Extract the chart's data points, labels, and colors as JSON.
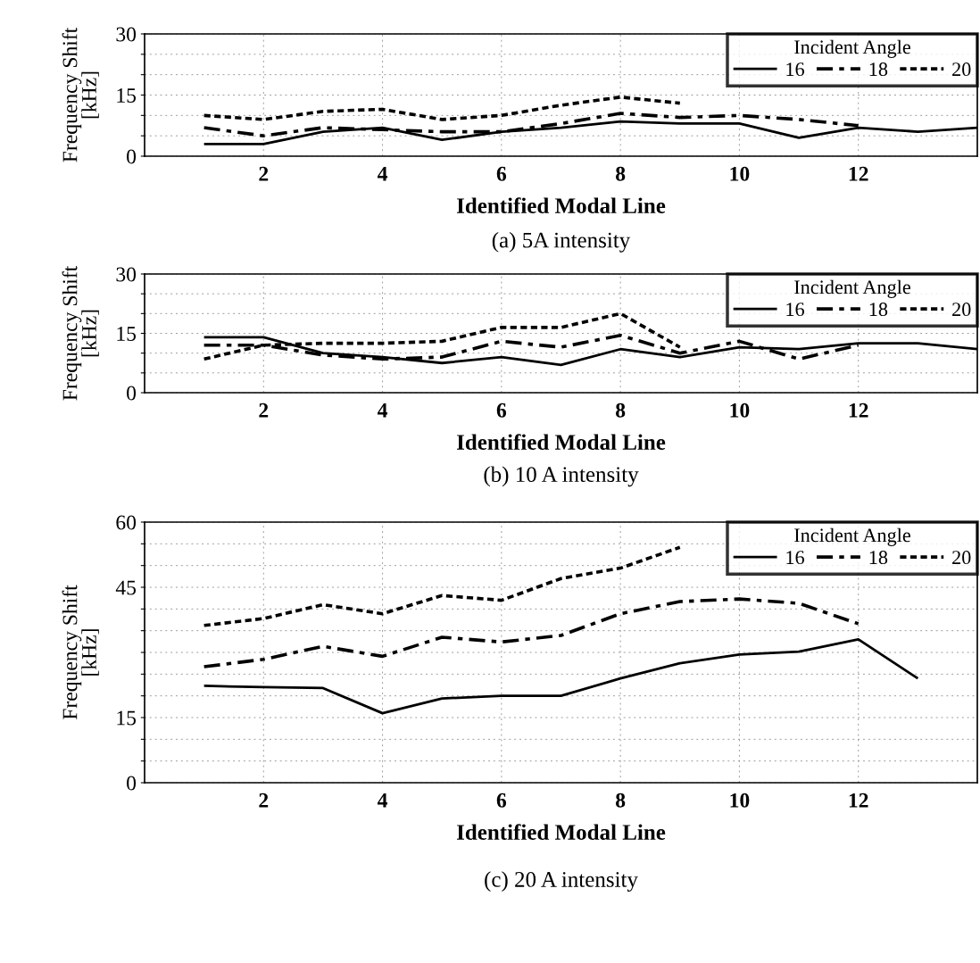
{
  "chart_data": [
    {
      "type": "line",
      "title": "(a) 5A intensity",
      "xlabel": "Identified Modal Line",
      "ylabel": "Frequency Shift\n[kHz]",
      "legend_title": "Incident Angle",
      "legend": "top right",
      "grid": true,
      "x": [
        1,
        2,
        3,
        4,
        5,
        6,
        7,
        8,
        9,
        10,
        11,
        12,
        13,
        14
      ],
      "xlim": [
        0,
        14
      ],
      "xticks": [
        2,
        4,
        6,
        8,
        10,
        12
      ],
      "ylim": [
        0,
        30
      ],
      "yticks": [
        0,
        {
          "value": 5,
          "label": null
        },
        {
          "value": 10,
          "label": null
        },
        15,
        {
          "value": 20,
          "label": null
        },
        {
          "value": 25,
          "label": null
        },
        30
      ],
      "series": [
        {
          "name": "16",
          "color": "#000000",
          "line_style": "solid",
          "values": [
            3,
            3,
            6,
            7,
            4,
            6,
            7,
            8.5,
            8,
            8,
            4.5,
            7,
            6,
            7
          ]
        },
        {
          "name": "18",
          "color": "#000000",
          "line_style": "dashdot",
          "values": [
            7,
            5,
            7,
            6.5,
            6,
            6,
            8,
            10.5,
            9.5,
            10,
            9,
            7.5,
            null,
            null
          ]
        },
        {
          "name": "20",
          "color": "#000000",
          "line_style": "dotted",
          "values": [
            10,
            9,
            11,
            11.5,
            9,
            10,
            12.5,
            14.5,
            13,
            null,
            null,
            null,
            null,
            null
          ]
        }
      ]
    },
    {
      "type": "line",
      "title": "(b) 10 A intensity",
      "xlabel": "Identified Modal Line",
      "ylabel": "Frequency Shift\n[kHz]",
      "legend_title": "Incident Angle",
      "legend": "top right",
      "grid": true,
      "x": [
        1,
        2,
        3,
        4,
        5,
        6,
        7,
        8,
        9,
        10,
        11,
        12,
        13,
        14
      ],
      "xlim": [
        0,
        14
      ],
      "xticks": [
        2,
        4,
        6,
        8,
        10,
        12
      ],
      "ylim": [
        0,
        30
      ],
      "yticks": [
        0,
        {
          "value": 5,
          "label": null
        },
        {
          "value": 10,
          "label": null
        },
        15,
        {
          "value": 20,
          "label": null
        },
        {
          "value": 25,
          "label": null
        },
        30
      ],
      "series": [
        {
          "name": "16",
          "color": "#000000",
          "line_style": "solid",
          "values": [
            14,
            14,
            10,
            9,
            7.5,
            9,
            7,
            11,
            9,
            11.5,
            11,
            12.5,
            12.5,
            11
          ]
        },
        {
          "name": "18",
          "color": "#000000",
          "line_style": "dashdot",
          "values": [
            12,
            12,
            9.5,
            8.5,
            9,
            13,
            11.5,
            14.5,
            10,
            13,
            8.5,
            12,
            null,
            null
          ]
        },
        {
          "name": "20",
          "color": "#000000",
          "line_style": "dotted",
          "values": [
            8.5,
            12,
            12.5,
            12.5,
            13,
            16.5,
            16.5,
            20,
            11.5,
            null,
            null,
            null,
            null,
            null
          ]
        }
      ]
    },
    {
      "type": "line",
      "title": "(c) 20 A intensity",
      "xlabel": "Identified Modal Line",
      "ylabel": "Frequency Shift\n[kHz]",
      "legend_title": "Incident Angle",
      "legend": "top right",
      "grid": true,
      "x": [
        1,
        2,
        3,
        4,
        5,
        6,
        7,
        8,
        9,
        10,
        11,
        12,
        13
      ],
      "xlim": [
        0,
        14
      ],
      "xticks": [
        2,
        4,
        6,
        8,
        10,
        12
      ],
      "ylim": [
        0,
        60
      ],
      "yticks": [
        0,
        {
          "value": 5,
          "label": null
        },
        {
          "value": 10,
          "label": null
        },
        15,
        {
          "value": 20,
          "label": null
        },
        {
          "value": 25,
          "label": null
        },
        {
          "value": 30,
          "label": null
        },
        {
          "value": 35,
          "label": null
        },
        {
          "value": 40,
          "label": null
        },
        45,
        {
          "value": 50,
          "label": null
        },
        {
          "value": 55,
          "label": null
        },
        60
      ],
      "series": [
        {
          "name": "16",
          "color": "#000000",
          "line_style": "solid",
          "values": [
            22.3,
            22,
            21.8,
            16,
            19.4,
            20,
            20,
            24,
            27.5,
            29.5,
            30.2,
            33,
            24
          ]
        },
        {
          "name": "18",
          "color": "#000000",
          "line_style": "dashdot",
          "values": [
            26.7,
            28.4,
            31.4,
            29.1,
            33.5,
            32.4,
            33.9,
            38.9,
            41.7,
            42.3,
            41.3,
            36.6,
            null
          ]
        },
        {
          "name": "20",
          "color": "#000000",
          "line_style": "dotted",
          "values": [
            36.2,
            37.8,
            41,
            38.9,
            43.1,
            42,
            47,
            49.4,
            54.2,
            null,
            null,
            null,
            null
          ]
        }
      ]
    }
  ]
}
